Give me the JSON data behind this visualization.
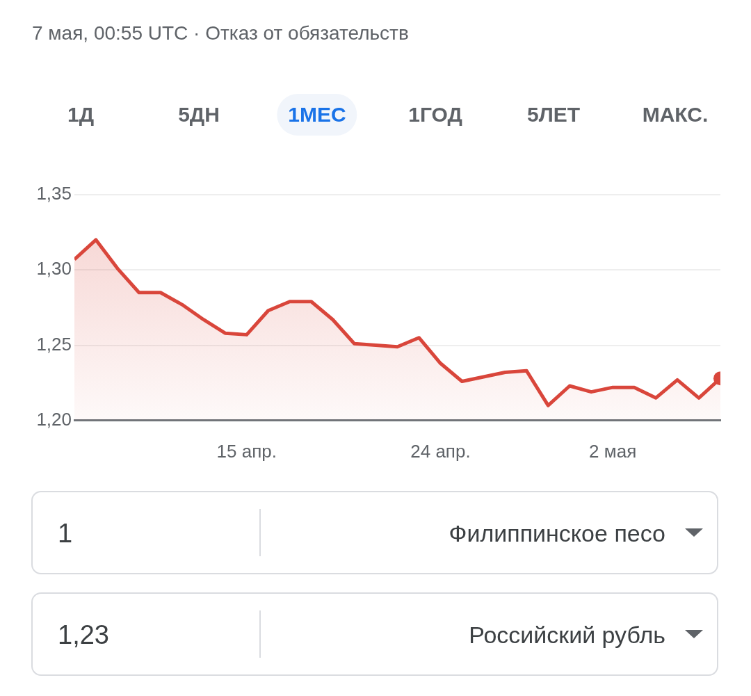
{
  "chart_data": {
    "type": "area",
    "title": "7 мая, 00:55 UTC · Отказ от обязательств",
    "annotations": [
      "1Д",
      "5ДН",
      "1МЕС",
      "1ГОД",
      "5ЛЕТ",
      "МАКС.",
      "1",
      "Филиппинское песо",
      "1,23",
      "Российский рубль"
    ],
    "x": [
      "--04-07",
      "--04-08",
      "--04-09",
      "--04-10",
      "--04-11",
      "--04-12",
      "--04-13",
      "--04-14",
      "--04-15",
      "--04-16",
      "--04-17",
      "--04-18",
      "--04-19",
      "--04-20",
      "--04-21",
      "--04-22",
      "--04-23",
      "--04-24",
      "--04-25",
      "--04-26",
      "--04-27",
      "--04-28",
      "--04-29",
      "--04-30",
      "--05-01",
      "--05-02",
      "--05-03",
      "--05-04",
      "--05-05",
      "--05-06",
      "--05-07"
    ],
    "series": [
      {
        "color": "#d9463b",
        "values": [
          1.307,
          1.32,
          1.301,
          1.285,
          1.285,
          1.277,
          1.267,
          1.258,
          1.257,
          1.273,
          1.279,
          1.279,
          1.267,
          1.251,
          1.25,
          1.249,
          1.255,
          1.238,
          1.226,
          1.229,
          1.232,
          1.233,
          1.21,
          1.223,
          1.219,
          1.222,
          1.222,
          1.215,
          1.227,
          1.215,
          1.228
        ]
      }
    ],
    "xlim": [
      "--04-07",
      "--05-07"
    ],
    "xticks": [
      {
        "value": "--04-15",
        "label": "15 апр."
      },
      {
        "value": "--04-24",
        "label": "24 апр."
      },
      {
        "value": "--05-02",
        "label": "2 мая"
      }
    ],
    "ylim": [
      1.2,
      1.35
    ],
    "yticks": [
      {
        "value": 1.2,
        "label": "1,20"
      },
      {
        "value": 1.25,
        "label": "1,25"
      },
      {
        "value": 1.3,
        "label": "1,30"
      },
      {
        "value": 1.35,
        "label": "1,35"
      }
    ],
    "grid": "y"
  }
}
